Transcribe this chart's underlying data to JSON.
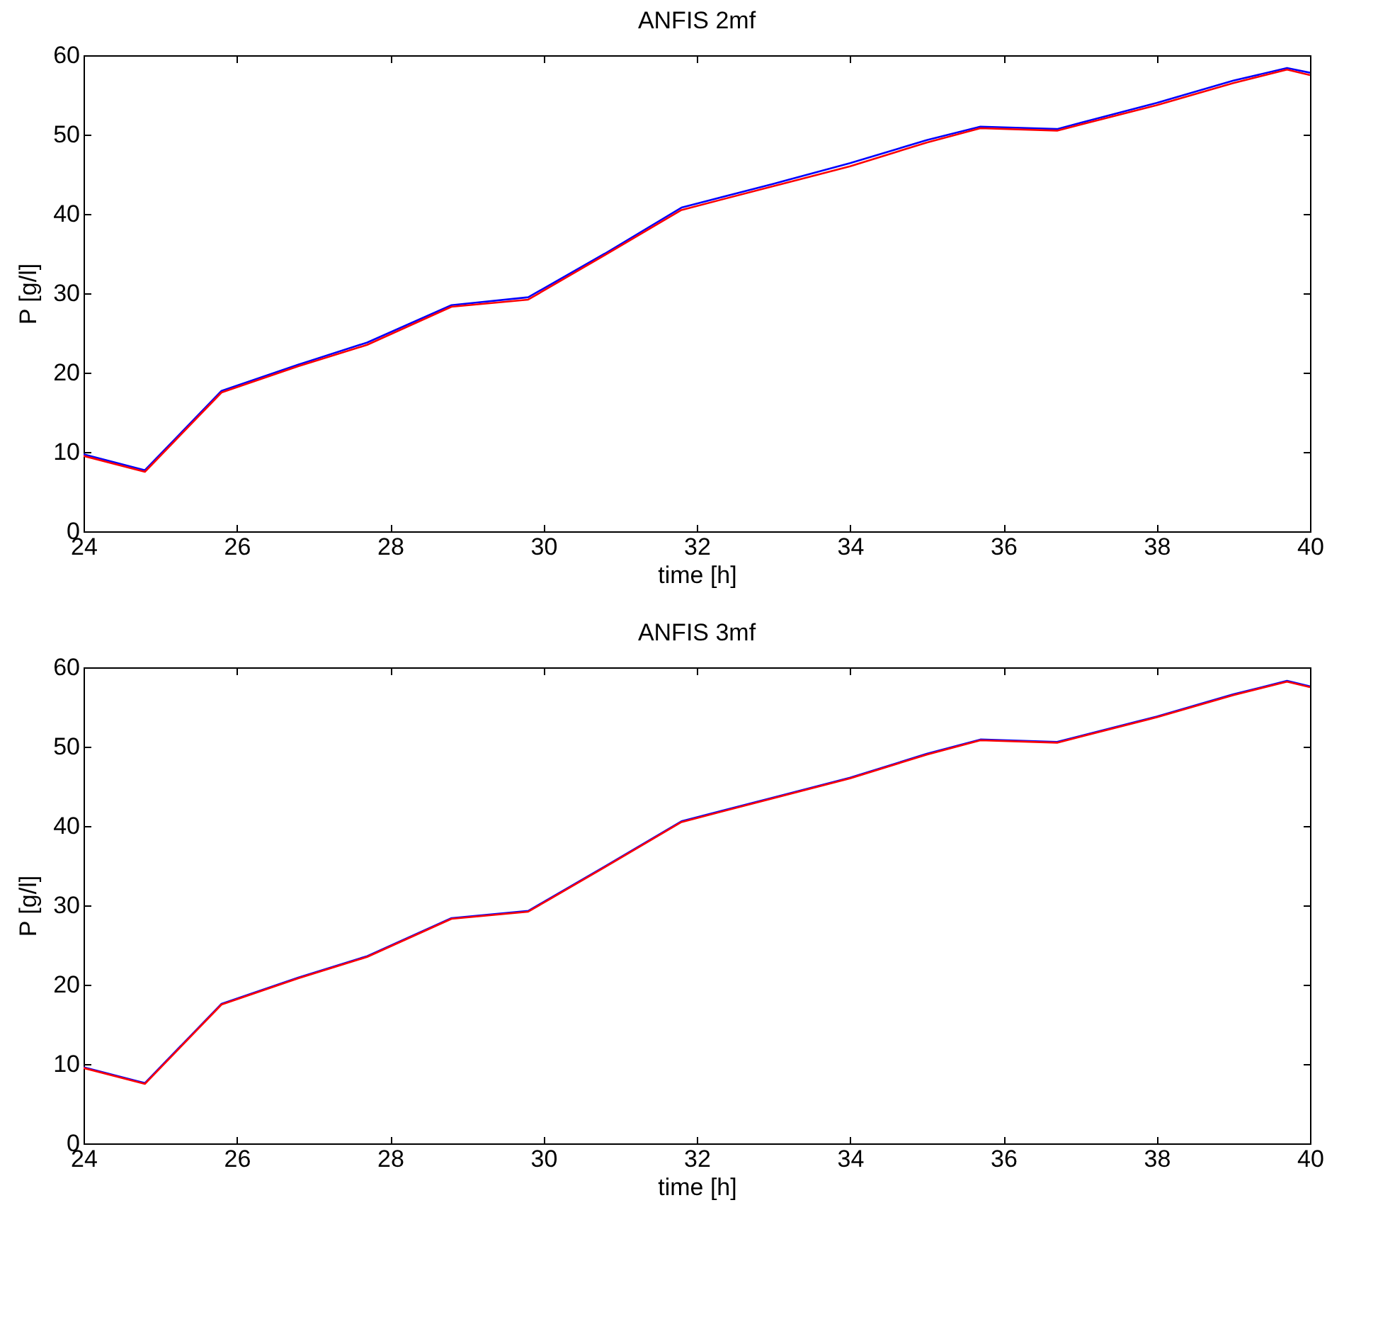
{
  "chart_data": [
    {
      "type": "line",
      "title": "ANFIS 2mf",
      "xlabel": "time [h]",
      "ylabel": "P [g/l]",
      "xlim": [
        24,
        40
      ],
      "xticks": [
        24,
        26,
        28,
        30,
        32,
        34,
        36,
        38,
        40
      ],
      "ylim": [
        0,
        60
      ],
      "yticks": [
        0,
        10,
        20,
        30,
        40,
        50,
        60
      ],
      "x": [
        24,
        24.8,
        25.8,
        26.8,
        27.7,
        28.8,
        29.8,
        30.8,
        31.8,
        33,
        34,
        35,
        35.7,
        36.7,
        38,
        39,
        39.7,
        40
      ],
      "series": [
        {
          "color": "#0000ff",
          "values": [
            9.7,
            7.7,
            17.7,
            21,
            23.8,
            28.5,
            29.5,
            35,
            40.8,
            43.8,
            46.4,
            49.3,
            51,
            50.7,
            54,
            56.8,
            58.4,
            57.8
          ]
        },
        {
          "color": "#ff0000",
          "values": [
            9.5,
            7.5,
            17.5,
            20.8,
            23.5,
            28.3,
            29.2,
            34.8,
            40.5,
            43.5,
            46,
            49,
            50.8,
            50.5,
            53.7,
            56.5,
            58.2,
            57.5
          ]
        }
      ]
    },
    {
      "type": "line",
      "title": "ANFIS 3mf",
      "xlabel": "time [h]",
      "ylabel": "P [g/l]",
      "xlim": [
        24,
        40
      ],
      "xticks": [
        24,
        26,
        28,
        30,
        32,
        34,
        36,
        38,
        40
      ],
      "ylim": [
        0,
        60
      ],
      "yticks": [
        0,
        10,
        20,
        30,
        40,
        50,
        60
      ],
      "x": [
        24,
        24.8,
        25.8,
        26.8,
        27.7,
        28.8,
        29.8,
        30.8,
        31.8,
        33,
        34,
        35,
        35.7,
        36.7,
        38,
        39,
        39.7,
        40
      ],
      "series": [
        {
          "color": "#0000ff",
          "values": [
            9.6,
            7.6,
            17.6,
            20.9,
            23.6,
            28.4,
            29.3,
            34.9,
            40.6,
            43.6,
            46.1,
            49.1,
            50.9,
            50.6,
            53.8,
            56.6,
            58.3,
            57.6
          ]
        },
        {
          "color": "#ff0000",
          "values": [
            9.5,
            7.5,
            17.5,
            20.8,
            23.5,
            28.3,
            29.2,
            34.8,
            40.5,
            43.5,
            46,
            49,
            50.8,
            50.5,
            53.7,
            56.5,
            58.2,
            57.5
          ]
        }
      ]
    }
  ]
}
